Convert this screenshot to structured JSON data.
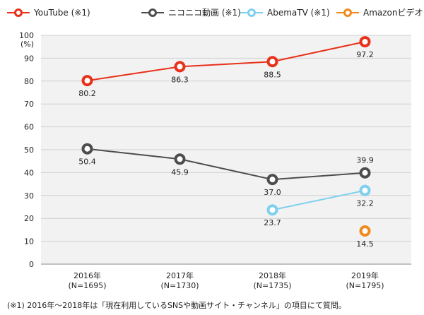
{
  "chart_data": {
    "type": "line",
    "categories": [
      "2016年",
      "2017年",
      "2018年",
      "2019年"
    ],
    "category_sublabels": [
      "(N=1695)",
      "(N=1730)",
      "(N=1735)",
      "(N=1795)"
    ],
    "ylabel": "(%)",
    "ylim": [
      0,
      100
    ],
    "yticks": [
      0,
      10,
      20,
      30,
      40,
      50,
      60,
      70,
      80,
      90,
      100
    ],
    "grid": true,
    "legend_position": "top",
    "series": [
      {
        "name": "YouTube (※1)",
        "color": "#e8311a",
        "values": [
          80.2,
          86.3,
          88.5,
          97.2
        ],
        "labels": [
          "80.2",
          "86.3",
          "88.5",
          "97.2"
        ]
      },
      {
        "name": "ニコニコ動画 (※1)",
        "color": "#4d4d4d",
        "values": [
          50.4,
          45.9,
          37.0,
          39.9
        ],
        "labels": [
          "50.4",
          "45.9",
          "37.0",
          "39.9"
        ]
      },
      {
        "name": "AbemaTV (※1)",
        "color": "#7fd0ee",
        "values": [
          null,
          null,
          23.7,
          32.2
        ],
        "labels": [
          "",
          "",
          "23.7",
          "32.2"
        ]
      },
      {
        "name": "Amazonビデオ",
        "color": "#f08a1c",
        "values": [
          null,
          null,
          null,
          14.5
        ],
        "labels": [
          "",
          "",
          "",
          "14.5"
        ]
      }
    ],
    "note": "(※1) 2016年～2018年は「現在利用しているSNSや動画サイト・チャンネル」の項目にて質問。"
  },
  "colors": {
    "plot_background": "#f2f2f2",
    "gridline": "#d0d0d0",
    "axis": "#888888"
  }
}
